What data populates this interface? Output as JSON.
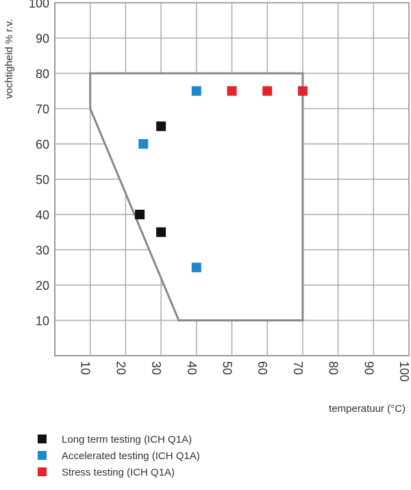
{
  "chart_data": {
    "type": "scatter",
    "xlabel": "temperatuur (°C)",
    "ylabel": "vochtigheid % r.v.",
    "xlim": [
      0,
      100
    ],
    "ylim": [
      0,
      100
    ],
    "x_ticks": [
      10,
      20,
      30,
      40,
      50,
      60,
      70,
      80,
      90,
      100
    ],
    "y_ticks": [
      10,
      20,
      30,
      40,
      50,
      60,
      70,
      80,
      90,
      100
    ],
    "grid": true,
    "legend_position": "bottom-left",
    "region_polygon": [
      [
        10,
        80
      ],
      [
        70,
        80
      ],
      [
        70,
        10
      ],
      [
        35,
        10
      ],
      [
        10,
        70
      ]
    ],
    "region_color": "#888888",
    "series": [
      {
        "name": "Long term testing (ICH Q1A)",
        "color": "#111111",
        "points": [
          [
            30,
            65
          ],
          [
            24,
            40
          ],
          [
            30,
            35
          ]
        ]
      },
      {
        "name": "Accelerated testing (ICH Q1A)",
        "color": "#1f88cc",
        "points": [
          [
            25,
            60
          ],
          [
            40,
            75
          ],
          [
            40,
            25
          ]
        ]
      },
      {
        "name": "Stress testing (ICH Q1A)",
        "color": "#e3242b",
        "points": [
          [
            50,
            75
          ],
          [
            60,
            75
          ],
          [
            70,
            75
          ]
        ]
      }
    ]
  }
}
